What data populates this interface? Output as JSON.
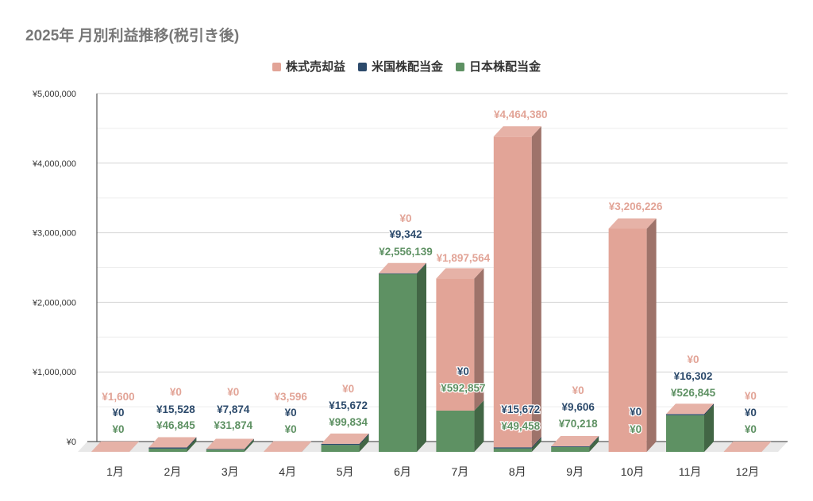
{
  "chart_data": {
    "type": "bar",
    "stacked": true,
    "title": "2025年 月別利益推移(税引き後)",
    "categories": [
      "1月",
      "2月",
      "3月",
      "4月",
      "5月",
      "6月",
      "7月",
      "8月",
      "9月",
      "10月",
      "11月",
      "12月"
    ],
    "series": [
      {
        "name": "日本株配当金",
        "color": "#5e9163",
        "values": [
          0,
          46845,
          31874,
          0,
          99834,
          2556139,
          592857,
          49458,
          70218,
          0,
          526845,
          0
        ]
      },
      {
        "name": "米国株配当金",
        "color": "#2c4a6b",
        "values": [
          0,
          15528,
          7874,
          0,
          15672,
          9342,
          0,
          15672,
          9606,
          0,
          16302,
          0
        ]
      },
      {
        "name": "株式売却益",
        "color": "#e2a497",
        "values": [
          1600,
          0,
          0,
          3596,
          0,
          0,
          1897564,
          4464380,
          0,
          3206226,
          0,
          0
        ]
      }
    ],
    "data_labels": {
      "株式売却益": [
        "¥1,600",
        "¥0",
        "¥0",
        "¥3,596",
        "¥0",
        "¥0",
        "¥1,897,564",
        "¥4,464,380",
        "¥0",
        "¥3,206,226",
        "¥0",
        "¥0"
      ],
      "米国株配当金": [
        "¥0",
        "¥15,528",
        "¥7,874",
        "¥0",
        "¥15,672",
        "¥9,342",
        "¥0",
        "¥15,672",
        "¥9,606",
        "¥0",
        "¥16,302",
        "¥0"
      ],
      "日本株配当金": [
        "¥0",
        "¥46,845",
        "¥31,874",
        "¥0",
        "¥99,834",
        "¥2,556,139",
        "¥592,857",
        "¥49,458",
        "¥70,218",
        "¥0",
        "¥526,845",
        "¥0"
      ]
    },
    "legend_order": [
      "株式売却益",
      "米国株配当金",
      "日本株配当金"
    ],
    "legend_position": "top",
    "ylim": [
      0,
      5000000
    ],
    "yticks": [
      0,
      1000000,
      2000000,
      3000000,
      4000000,
      5000000
    ],
    "ytick_labels": [
      "¥0",
      "¥1,000,000",
      "¥2,000,000",
      "¥3,000,000",
      "¥4,000,000",
      "¥5,000,000"
    ],
    "grid": true
  }
}
